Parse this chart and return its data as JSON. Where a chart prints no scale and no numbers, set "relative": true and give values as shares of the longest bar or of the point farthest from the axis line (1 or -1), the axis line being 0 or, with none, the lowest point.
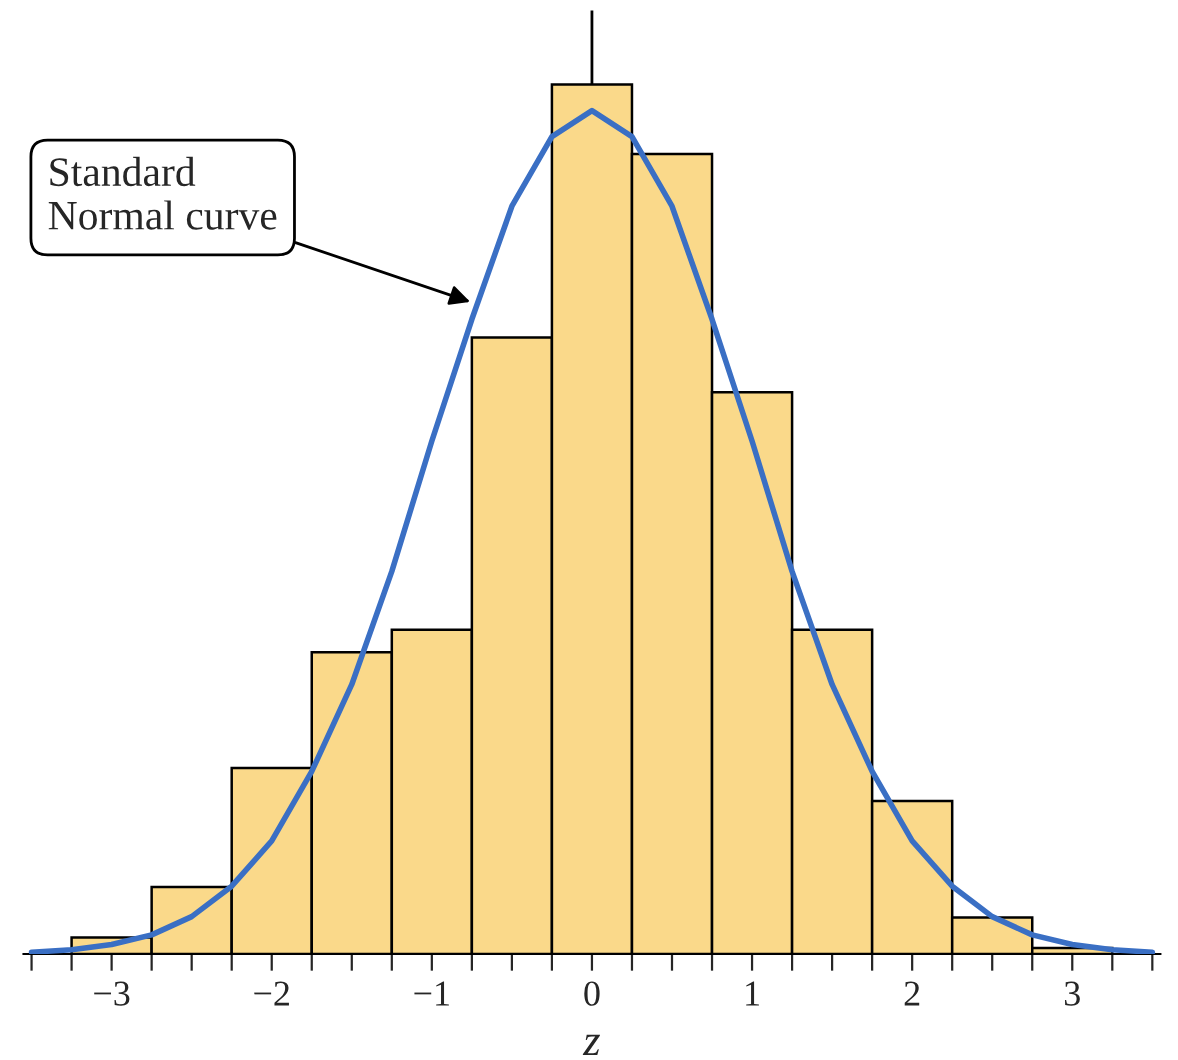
{
  "chart_data": {
    "type": "histogram",
    "relative": true,
    "xlabel": "z",
    "bins": [
      -3.25,
      -2.75,
      -2.25,
      -1.75,
      -1.25,
      -0.75,
      -0.25,
      0.25,
      0.75,
      1.25,
      1.75,
      2.25,
      2.75,
      3.25
    ],
    "values": [
      0.019,
      0.077,
      0.214,
      0.347,
      0.373,
      0.709,
      1,
      0.92,
      0.646,
      0.373,
      0.176,
      0.042,
      0.007
    ],
    "color": "#fad98a",
    "series": [
      {
        "type": "line",
        "color": "#3a6fc4",
        "x": [
          -3.5,
          -3.25,
          -3,
          -2.75,
          -2.5,
          -2.25,
          -2,
          -1.75,
          -1.5,
          -1.25,
          -1,
          -0.75,
          -0.5,
          -0.25,
          0,
          0.25,
          0.5,
          0.75,
          1,
          1.25,
          1.5,
          1.75,
          2,
          2.25,
          2.5,
          2.75,
          3,
          3.25,
          3.5
        ],
        "values": [
          0.002,
          0.005,
          0.011,
          0.022,
          0.043,
          0.078,
          0.13,
          0.21,
          0.31,
          0.44,
          0.59,
          0.73,
          0.86,
          0.94,
          0.97,
          0.94,
          0.86,
          0.73,
          0.59,
          0.44,
          0.31,
          0.21,
          0.13,
          0.078,
          0.043,
          0.022,
          0.011,
          0.005,
          0.002
        ]
      }
    ],
    "xlim": [
      -3.55,
      3.55
    ],
    "xticks": [
      {
        "value": -3.5,
        "label": null
      },
      {
        "value": -3.25,
        "label": null
      },
      {
        "value": -3,
        "label": "−3"
      },
      {
        "value": -2.75,
        "label": null
      },
      {
        "value": -2.5,
        "label": null
      },
      {
        "value": -2.25,
        "label": null
      },
      {
        "value": -2,
        "label": "−2"
      },
      {
        "value": -1.75,
        "label": null
      },
      {
        "value": -1.5,
        "label": null
      },
      {
        "value": -1.25,
        "label": null
      },
      {
        "value": -1,
        "label": "−1"
      },
      {
        "value": -0.75,
        "label": null
      },
      {
        "value": -0.5,
        "label": null
      },
      {
        "value": -0.25,
        "label": null
      },
      0,
      {
        "value": 0.25,
        "label": null
      },
      {
        "value": 0.5,
        "label": null
      },
      {
        "value": 0.75,
        "label": null
      },
      1,
      {
        "value": 1.25,
        "label": null
      },
      {
        "value": 1.5,
        "label": null
      },
      {
        "value": 1.75,
        "label": null
      },
      2,
      {
        "value": 2.25,
        "label": null
      },
      {
        "value": 2.5,
        "label": null
      },
      {
        "value": 2.75,
        "label": null
      },
      3,
      {
        "value": 3.25,
        "label": null
      },
      {
        "value": 3.5,
        "label": null
      }
    ],
    "ref_lines": [
      {
        "axis": "x",
        "value": 0,
        "color": "#000000"
      }
    ],
    "annotations": [
      {
        "text": "Standard\nNormal curve",
        "x": -0.76,
        "y": 0.75
      }
    ],
    "grid": false,
    "legend": false
  }
}
